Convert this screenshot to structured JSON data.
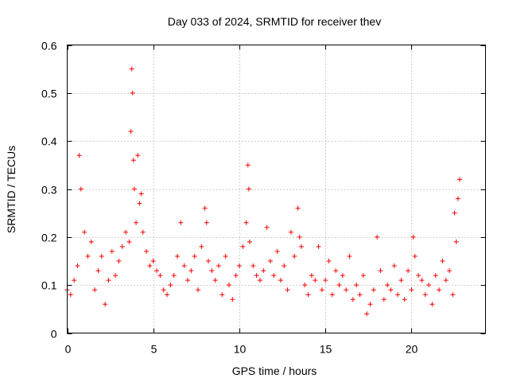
{
  "chart_data": {
    "type": "scatter",
    "title": "Day 033 of 2024, SRMTID for receiver thev",
    "xlabel": "GPS time / hours",
    "ylabel": "SRMTID / TECUs",
    "xlim": [
      0,
      24.3
    ],
    "ylim": [
      0,
      0.6
    ],
    "xticks": [
      0,
      5,
      10,
      15,
      20
    ],
    "xtick_labels": [
      "0",
      "5",
      "10",
      "15",
      "20"
    ],
    "yticks": [
      0,
      0.1,
      0.2,
      0.3,
      0.4,
      0.5,
      0.6
    ],
    "ytick_labels": [
      "0",
      "0.1",
      "0.2",
      "0.3",
      "0.4",
      "0.5",
      "0.6"
    ],
    "grid": true,
    "marker": "+",
    "series": [
      {
        "name": "SRMTID",
        "color": "#ff0000",
        "x": [
          0.0,
          0.2,
          0.4,
          0.6,
          0.7,
          0.8,
          1.0,
          1.2,
          1.4,
          1.6,
          1.8,
          2.0,
          2.2,
          2.4,
          2.6,
          2.8,
          3.0,
          3.2,
          3.4,
          3.6,
          3.7,
          3.75,
          3.8,
          3.85,
          3.9,
          4.0,
          4.1,
          4.2,
          4.3,
          4.4,
          4.6,
          4.8,
          5.0,
          5.2,
          5.4,
          5.6,
          5.8,
          6.0,
          6.2,
          6.4,
          6.6,
          6.8,
          7.0,
          7.2,
          7.4,
          7.6,
          7.8,
          8.0,
          8.1,
          8.2,
          8.4,
          8.6,
          8.8,
          9.0,
          9.2,
          9.4,
          9.6,
          9.8,
          10.0,
          10.2,
          10.4,
          10.5,
          10.55,
          10.6,
          10.8,
          11.0,
          11.2,
          11.4,
          11.6,
          11.8,
          12.0,
          12.2,
          12.4,
          12.6,
          12.8,
          13.0,
          13.2,
          13.4,
          13.5,
          13.6,
          13.8,
          14.0,
          14.2,
          14.4,
          14.6,
          14.8,
          15.0,
          15.2,
          15.4,
          15.6,
          15.8,
          16.0,
          16.2,
          16.4,
          16.6,
          16.8,
          17.0,
          17.2,
          17.4,
          17.6,
          17.8,
          18.0,
          18.2,
          18.4,
          18.6,
          18.8,
          19.0,
          19.2,
          19.4,
          19.6,
          19.8,
          20.0,
          20.1,
          20.2,
          20.4,
          20.6,
          20.8,
          21.0,
          21.2,
          21.4,
          21.6,
          21.8,
          22.0,
          22.2,
          22.4,
          22.5,
          22.6,
          22.7,
          22.8
        ],
        "values": [
          0.09,
          0.08,
          0.11,
          0.14,
          0.37,
          0.3,
          0.21,
          0.16,
          0.19,
          0.09,
          0.13,
          0.16,
          0.06,
          0.11,
          0.17,
          0.12,
          0.15,
          0.18,
          0.21,
          0.19,
          0.42,
          0.55,
          0.5,
          0.36,
          0.3,
          0.23,
          0.37,
          0.27,
          0.29,
          0.21,
          0.17,
          0.14,
          0.15,
          0.13,
          0.12,
          0.09,
          0.08,
          0.1,
          0.12,
          0.16,
          0.23,
          0.14,
          0.11,
          0.13,
          0.16,
          0.09,
          0.18,
          0.26,
          0.23,
          0.15,
          0.13,
          0.11,
          0.14,
          0.08,
          0.16,
          0.1,
          0.07,
          0.12,
          0.14,
          0.18,
          0.23,
          0.35,
          0.3,
          0.19,
          0.14,
          0.12,
          0.11,
          0.13,
          0.22,
          0.15,
          0.12,
          0.17,
          0.11,
          0.14,
          0.09,
          0.21,
          0.16,
          0.26,
          0.2,
          0.18,
          0.1,
          0.08,
          0.12,
          0.11,
          0.18,
          0.09,
          0.11,
          0.15,
          0.08,
          0.13,
          0.1,
          0.12,
          0.09,
          0.16,
          0.07,
          0.1,
          0.08,
          0.12,
          0.04,
          0.06,
          0.09,
          0.2,
          0.13,
          0.07,
          0.1,
          0.09,
          0.14,
          0.08,
          0.11,
          0.07,
          0.13,
          0.09,
          0.2,
          0.16,
          0.12,
          0.11,
          0.08,
          0.1,
          0.06,
          0.12,
          0.09,
          0.15,
          0.11,
          0.13,
          0.08,
          0.25,
          0.19,
          0.28,
          0.32
        ]
      }
    ]
  }
}
